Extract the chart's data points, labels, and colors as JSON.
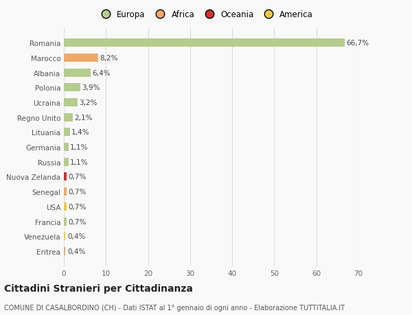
{
  "countries": [
    "Romania",
    "Marocco",
    "Albania",
    "Polonia",
    "Ucraina",
    "Regno Unito",
    "Lituania",
    "Germania",
    "Russia",
    "Nuova Zelanda",
    "Senegal",
    "USA",
    "Francia",
    "Venezuela",
    "Eritrea"
  ],
  "values": [
    66.7,
    8.2,
    6.4,
    3.9,
    3.2,
    2.1,
    1.4,
    1.1,
    1.1,
    0.7,
    0.7,
    0.7,
    0.7,
    0.4,
    0.4
  ],
  "labels": [
    "66,7%",
    "8,2%",
    "6,4%",
    "3,9%",
    "3,2%",
    "2,1%",
    "1,4%",
    "1,1%",
    "1,1%",
    "0,7%",
    "0,7%",
    "0,7%",
    "0,7%",
    "0,4%",
    "0,4%"
  ],
  "continents": [
    "Europa",
    "Africa",
    "Europa",
    "Europa",
    "Europa",
    "Europa",
    "Europa",
    "Europa",
    "Europa",
    "Oceania",
    "Africa",
    "America",
    "Europa",
    "America",
    "Africa"
  ],
  "colors": {
    "Europa": "#b5cc8e",
    "Africa": "#f0a868",
    "Oceania": "#cc3333",
    "America": "#f0c848"
  },
  "xlim": [
    0,
    70
  ],
  "xticks": [
    0,
    10,
    20,
    30,
    40,
    50,
    60,
    70
  ],
  "bg_color": "#f9f9f9",
  "grid_color": "#dddddd",
  "title": "Cittadini Stranieri per Cittadinanza",
  "subtitle": "COMUNE DI CASALBORDINO (CH) - Dati ISTAT al 1° gennaio di ogni anno - Elaborazione TUTTITALIA.IT",
  "bar_height": 0.55,
  "label_fontsize": 7.5,
  "tick_fontsize": 7.5,
  "title_fontsize": 10,
  "subtitle_fontsize": 7,
  "legend_entries": [
    "Europa",
    "Africa",
    "Oceania",
    "America"
  ]
}
